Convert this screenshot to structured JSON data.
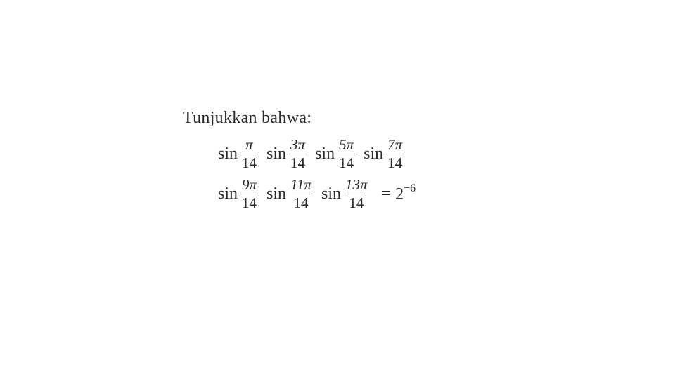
{
  "instruction": "Tunjukkan bahwa:",
  "line1": {
    "terms": [
      {
        "func": "sin",
        "num": "π",
        "den": "14"
      },
      {
        "func": "sin",
        "num": "3π",
        "den": "14"
      },
      {
        "func": "sin",
        "num": "5π",
        "den": "14"
      },
      {
        "func": "sin",
        "num": "7π",
        "den": "14"
      }
    ]
  },
  "line2": {
    "terms": [
      {
        "func": "sin",
        "num": "9π",
        "den": "14"
      },
      {
        "func": "sin",
        "num": "11π",
        "den": "14"
      },
      {
        "func": "sin",
        "num": "13π",
        "den": "14"
      }
    ],
    "equals": "=",
    "result_base": "2",
    "result_exp": "−6"
  },
  "style": {
    "text_color": "#2a2a2a",
    "background_color": "#ffffff",
    "instruction_fontsize": 24,
    "equation_fontsize": 24,
    "frac_fontsize": 21,
    "font_family": "Times New Roman"
  }
}
